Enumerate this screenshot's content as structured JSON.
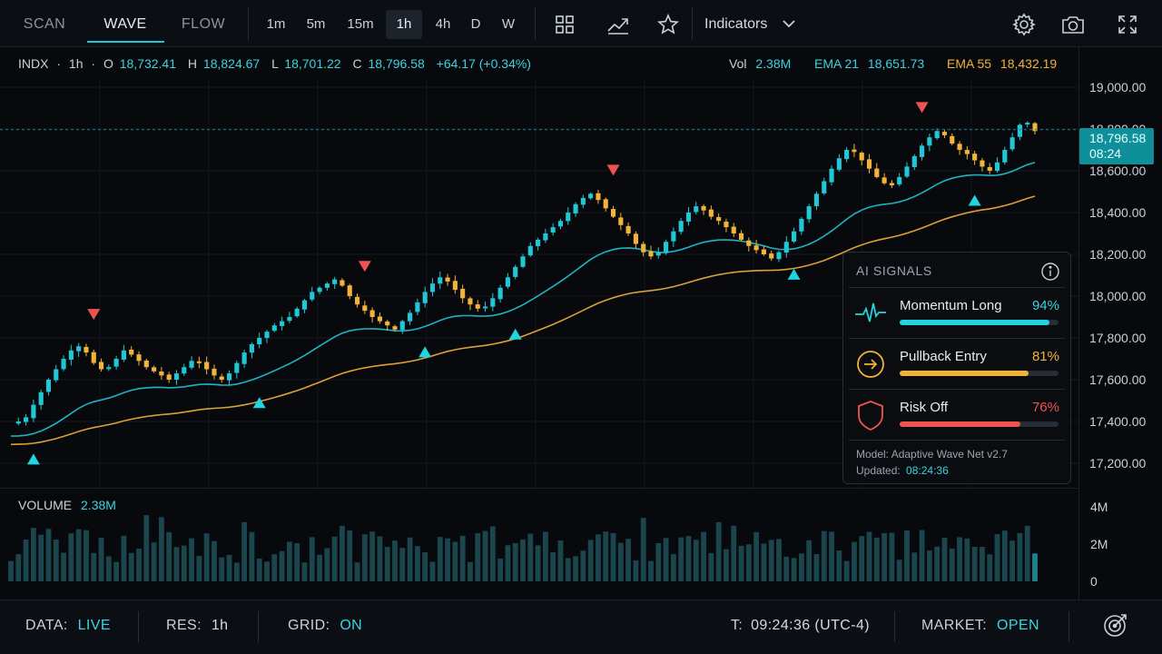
{
  "toolbar": {
    "modes": [
      "SCAN",
      "WAVE",
      "FLOW"
    ],
    "active_mode": "WAVE",
    "timeframes": [
      "1m",
      "5m",
      "15m",
      "1h",
      "4h",
      "D",
      "W"
    ],
    "active_timeframe": "1h",
    "indicators_label": "Indicators"
  },
  "ohlc": {
    "symbol": "INDX",
    "dot": "·",
    "interval": "1h",
    "o_label": "O",
    "o_value": "18,732.41",
    "h_label": "H",
    "h_value": "18,824.67",
    "l_label": "L",
    "l_value": "18,701.22",
    "c_label": "C",
    "c_value": "18,796.58",
    "change": "+64.17 (+0.34%)",
    "vol_label": "Vol",
    "vol_value": "2.38M",
    "ema21_label": "EMA 21",
    "ema21_value": "18,651.73",
    "ema55_label": "EMA 55",
    "ema55_value": "18,432.19"
  },
  "price_tag": {
    "price": "18,796.58",
    "countdown": "08:24"
  },
  "volume": {
    "label": "VOLUME",
    "value": "2.38M"
  },
  "chart_data": {
    "type": "candlestick",
    "price_axis_ticks": [
      "19,000.00",
      "18,800.00",
      "18,600.00",
      "18,400.00",
      "18,200.00",
      "18,000.00",
      "17,800.00",
      "17,600.00",
      "17,400.00",
      "17,200.00"
    ],
    "price_axis_values": [
      19000,
      18800,
      18600,
      18400,
      18200,
      18000,
      17800,
      17600,
      17400,
      17200
    ],
    "volume_axis_ticks": [
      "4M",
      "2M",
      "0"
    ],
    "volume_axis_values": [
      4000000,
      2000000,
      0
    ],
    "ylim": [
      17100,
      19100
    ],
    "close_path": [
      17390,
      17400,
      17420,
      17480,
      17540,
      17600,
      17650,
      17700,
      17740,
      17760,
      17730,
      17680,
      17650,
      17660,
      17700,
      17740,
      17720,
      17690,
      17660,
      17640,
      17620,
      17600,
      17630,
      17660,
      17690,
      17680,
      17650,
      17620,
      17600,
      17630,
      17680,
      17730,
      17770,
      17800,
      17830,
      17860,
      17880,
      17900,
      17940,
      17980,
      18020,
      18040,
      18060,
      18080,
      18050,
      18000,
      17960,
      17930,
      17900,
      17880,
      17860,
      17840,
      17880,
      17920,
      17970,
      18020,
      18060,
      18090,
      18070,
      18030,
      17990,
      17960,
      17940,
      17950,
      17990,
      18040,
      18090,
      18140,
      18190,
      18240,
      18270,
      18300,
      18330,
      18360,
      18400,
      18440,
      18470,
      18490,
      18460,
      18420,
      18380,
      18340,
      18300,
      18250,
      18210,
      18190,
      18210,
      18260,
      18310,
      18360,
      18400,
      18430,
      18410,
      18380,
      18360,
      18330,
      18300,
      18270,
      18240,
      18220,
      18200,
      18180,
      18210,
      18260,
      18310,
      18370,
      18430,
      18490,
      18550,
      18610,
      18660,
      18700,
      18690,
      18650,
      18610,
      18570,
      18540,
      18530,
      18570,
      18620,
      18670,
      18720,
      18760,
      18790,
      18770,
      18730,
      18700,
      18680,
      18650,
      18620,
      18600,
      18640,
      18700,
      18760,
      18820,
      18830,
      18790
    ],
    "ema21_last": 18651.73,
    "ema55_last": 18432.19,
    "last_price": 18796.58,
    "buy_signal_indices": [
      3,
      33,
      55,
      67,
      104,
      128
    ],
    "sell_signal_indices": [
      11,
      47,
      80,
      121
    ]
  },
  "ai_signals": {
    "title": "AI SIGNALS",
    "items": [
      {
        "name": "Momentum Long",
        "value": "94%",
        "fraction": 0.94,
        "color": "#22d3e0",
        "icon": "pulse-icon"
      },
      {
        "name": "Pullback Entry",
        "value": "81%",
        "fraction": 0.81,
        "color": "#f2b33a",
        "icon": "arrow-circle-icon"
      },
      {
        "name": "Risk Off",
        "value": "76%",
        "fraction": 0.76,
        "color": "#ef5350",
        "icon": "shield-icon"
      }
    ],
    "model_text": "Model: Adaptive Wave Net v2.7",
    "updated_label": "Updated:",
    "updated_value": "08:24:36"
  },
  "status": {
    "data_label": "DATA:",
    "data_value": "LIVE",
    "res_label": "RES:",
    "res_value": "1h",
    "grid_label": "GRID:",
    "grid_value": "ON",
    "time_label": "T:",
    "time_value": "09:24:36 (UTC-4)",
    "market_label": "MARKET:",
    "market_value": "OPEN"
  },
  "colors": {
    "cyan": "#22c7d6",
    "amber": "#f2b33a",
    "red": "#ef5350",
    "bg": "#07090c"
  }
}
